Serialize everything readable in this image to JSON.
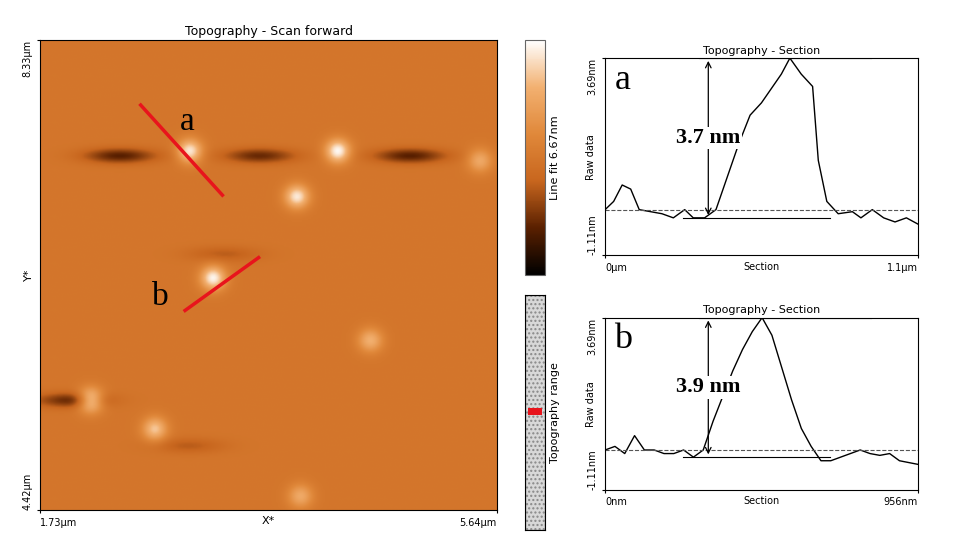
{
  "chart_data": [
    {
      "type": "heatmap",
      "title": "Topography - Scan forward",
      "xlabel": "X*",
      "ylabel": "Y*",
      "xlim": [
        1.73,
        5.64
      ],
      "ylim": [
        4.42,
        8.33
      ],
      "xticks": [
        {
          "value": 1.73,
          "label": "1.73µm"
        },
        {
          "value": 5.64,
          "label": "5.64µm"
        }
      ],
      "yticks": [
        {
          "value": 4.42,
          "label": "4.42µm"
        },
        {
          "value": 8.33,
          "label": "8.33µm"
        }
      ],
      "background": 3.3,
      "features": [
        {
          "kind": "peak",
          "x": 3.01,
          "y": 7.41,
          "height": 3.0
        },
        {
          "kind": "peak",
          "x": 4.28,
          "y": 7.41,
          "height": 3.3
        },
        {
          "kind": "peak",
          "x": 3.93,
          "y": 7.03,
          "height": 3.0
        },
        {
          "kind": "peak",
          "x": 3.21,
          "y": 6.35,
          "height": 3.2
        },
        {
          "kind": "peak",
          "x": 4.56,
          "y": 5.83,
          "height": 2.0
        },
        {
          "kind": "peak",
          "x": 2.16,
          "y": 5.33,
          "height": 3.2
        },
        {
          "kind": "peak",
          "x": 2.71,
          "y": 5.09,
          "height": 2.4
        },
        {
          "kind": "peak",
          "x": 3.96,
          "y": 4.53,
          "height": 1.8
        },
        {
          "kind": "peak",
          "x": 5.5,
          "y": 7.33,
          "height": 1.8
        },
        {
          "kind": "trough",
          "x": 2.41,
          "y": 7.37,
          "height": -2.0
        },
        {
          "kind": "trough",
          "x": 3.61,
          "y": 7.37,
          "height": -1.8
        },
        {
          "kind": "trough",
          "x": 4.9,
          "y": 7.37,
          "height": -2.0
        },
        {
          "kind": "trough",
          "x": 1.99,
          "y": 5.33,
          "height": -1.8
        },
        {
          "kind": "trough",
          "x": 3.3,
          "y": 6.55,
          "height": -0.8
        },
        {
          "kind": "trough",
          "x": 3.0,
          "y": 4.95,
          "height": -0.8
        }
      ],
      "colorbar": {
        "label": "Line fit 6.67nm",
        "range": [
          0,
          6.67
        ]
      },
      "range_bar": {
        "label": "Topography range"
      },
      "sections": [
        {
          "label": "a",
          "start": [
            2.59,
            7.79
          ],
          "end": [
            3.29,
            7.04
          ],
          "color": "#e8141c"
        },
        {
          "label": "b",
          "start": [
            2.97,
            6.08
          ],
          "end": [
            3.6,
            6.52
          ],
          "color": "#e8141c"
        }
      ]
    },
    {
      "type": "line",
      "title": "Topography - Section",
      "xlabel": "Section",
      "ylabel": "Raw data",
      "panel_label": "a",
      "annotation": "3.7 nm",
      "color": "#000000",
      "baseline": 0,
      "xlim": [
        0,
        1.1
      ],
      "ylim": [
        -1.11,
        3.69
      ],
      "xticks": [
        {
          "value": 0,
          "label": "0µm"
        },
        {
          "value": 1.1,
          "label": "1.1µm"
        }
      ],
      "yticks": [
        {
          "value": -1.11,
          "label": "-1.11nm"
        },
        {
          "value": 3.69,
          "label": "3.69nm"
        }
      ],
      "x": [
        0,
        0.03,
        0.06,
        0.09,
        0.12,
        0.16,
        0.2,
        0.24,
        0.28,
        0.31,
        0.35,
        0.39,
        0.43,
        0.47,
        0.51,
        0.55,
        0.58,
        0.62,
        0.65,
        0.69,
        0.73,
        0.75,
        0.78,
        0.82,
        0.87,
        0.9,
        0.94,
        0.98,
        1.02,
        1.06,
        1.1
      ],
      "values": [
        0.0,
        0.2,
        0.6,
        0.5,
        0.0,
        -0.05,
        -0.1,
        -0.2,
        0.0,
        -0.2,
        -0.2,
        0.0,
        0.8,
        1.6,
        2.3,
        2.6,
        2.9,
        3.3,
        3.69,
        3.3,
        3.0,
        1.2,
        0.2,
        -0.1,
        -0.05,
        -0.2,
        0.0,
        -0.2,
        -0.3,
        -0.2,
        -0.35
      ]
    },
    {
      "type": "line",
      "title": "Topography - Section",
      "xlabel": "Section",
      "ylabel": "Raw data",
      "panel_label": "b",
      "annotation": "3.9 nm",
      "color": "#000000",
      "baseline": 0,
      "xlim": [
        0,
        956
      ],
      "ylim": [
        -1.11,
        3.69
      ],
      "xticks": [
        {
          "value": 0,
          "label": "0nm"
        },
        {
          "value": 956,
          "label": "956nm"
        }
      ],
      "yticks": [
        {
          "value": -1.11,
          "label": "-1.11nm"
        },
        {
          "value": 3.69,
          "label": "3.69nm"
        }
      ],
      "x": [
        0,
        30,
        60,
        90,
        120,
        150,
        180,
        210,
        240,
        270,
        300,
        330,
        360,
        390,
        420,
        450,
        480,
        510,
        540,
        570,
        600,
        630,
        660,
        690,
        720,
        750,
        780,
        810,
        840,
        870,
        900,
        956
      ],
      "values": [
        0.0,
        0.1,
        -0.1,
        0.4,
        0.0,
        0.0,
        -0.1,
        -0.1,
        0.0,
        -0.2,
        0.0,
        0.8,
        1.5,
        2.2,
        2.8,
        3.3,
        3.69,
        3.2,
        2.3,
        1.4,
        0.6,
        0.1,
        -0.3,
        -0.3,
        -0.2,
        -0.1,
        0.0,
        -0.1,
        -0.15,
        -0.1,
        -0.3,
        -0.4
      ]
    }
  ]
}
